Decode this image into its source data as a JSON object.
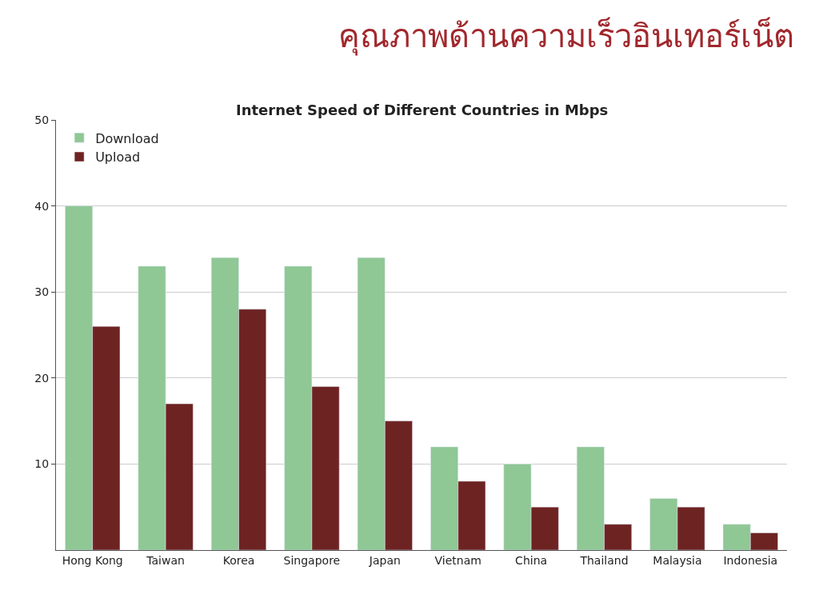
{
  "chart_data": {
    "type": "bar",
    "title": "คุณภาพด้านความเร็วอินเทอร์เน็ต",
    "subtitle": "Internet Speed of Different Countries in Mbps",
    "categories": [
      "Hong Kong",
      "Taiwan",
      "Korea",
      "Singapore",
      "Japan",
      "Vietnam",
      "China",
      "Thailand",
      "Malaysia",
      "Indonesia"
    ],
    "series": [
      {
        "name": "Download",
        "color": "#8fc795",
        "values": [
          40,
          33,
          34,
          33,
          34,
          12,
          10,
          12,
          6,
          3
        ]
      },
      {
        "name": "Upload",
        "color": "#6e2323",
        "values": [
          26,
          17,
          28,
          19,
          15,
          8,
          5,
          3,
          5,
          2
        ]
      }
    ],
    "ylim": [
      0,
      50
    ],
    "yticks": [
      10,
      20,
      30,
      40,
      50
    ],
    "grid": true,
    "legend": "top left"
  }
}
